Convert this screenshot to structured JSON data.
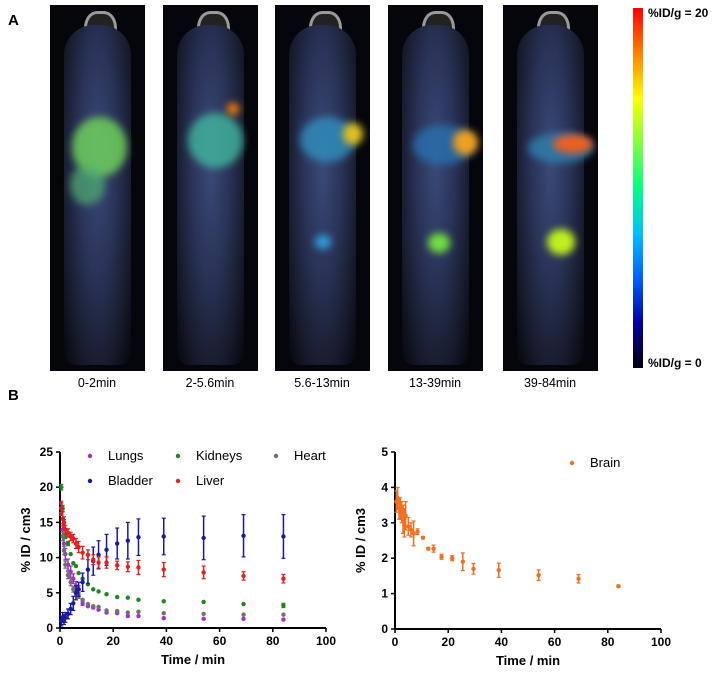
{
  "panel_a": {
    "letter": "A",
    "scan_labels": [
      "0-2min",
      "2-5.6min",
      "5.6-13min",
      "13-39min",
      "39-84min"
    ],
    "colorbar_max_label": "%ID/g = 20",
    "colorbar_min_label": "%ID/g = 0"
  },
  "panel_b": {
    "letter": "B"
  },
  "chart_data": [
    {
      "type": "scatter",
      "xlabel": "Time / min",
      "ylabel": "% ID / cm3",
      "xlim": [
        0,
        100
      ],
      "ylim": [
        0,
        25
      ],
      "xticks": [
        0,
        20,
        40,
        60,
        80,
        100
      ],
      "yticks": [
        0,
        5,
        10,
        15,
        20,
        25
      ],
      "grid": false,
      "legend_position": "top",
      "x": [
        0.5,
        1,
        1.5,
        2,
        3,
        4,
        5,
        6,
        7,
        8.5,
        10.5,
        12.5,
        14.5,
        17.5,
        21.5,
        25.5,
        29.5,
        39,
        54,
        69,
        84
      ],
      "series": [
        {
          "name": "Lungs",
          "color": "#a030d0",
          "values": [
            17,
            14,
            12,
            10.5,
            9,
            8,
            7,
            6,
            5.5,
            3.5,
            3.1,
            2.9,
            2.6,
            2.2,
            2.1,
            1.7,
            1.7,
            1.4,
            1.3,
            1.3,
            1.2
          ],
          "errors": [
            0.8,
            0.8,
            0.8,
            0.8,
            0.8,
            0.8,
            0.7,
            0.6,
            0.5,
            0.3,
            0,
            0,
            0,
            0,
            0,
            0,
            0,
            0,
            0,
            0,
            0
          ]
        },
        {
          "name": "Kidneys",
          "color": "#1a8a1a",
          "values": [
            20,
            17,
            15,
            13,
            12,
            10.5,
            9.2,
            8.8,
            7.8,
            7,
            6.2,
            5.5,
            5.2,
            4.8,
            4.4,
            4.3,
            4,
            3.8,
            3.7,
            3.4,
            3.2
          ],
          "errors": [
            0.4,
            0.4,
            0.4,
            0.3,
            0.3,
            0,
            0,
            0,
            0,
            0,
            0,
            0,
            0,
            0,
            0,
            0,
            0,
            0,
            0,
            0,
            0.3
          ]
        },
        {
          "name": "Heart",
          "color": "#707070",
          "values": [
            17,
            13,
            11,
            9,
            7.5,
            6.5,
            5.5,
            5,
            4.5,
            4,
            3.4,
            3.1,
            3,
            2.5,
            2.4,
            2.2,
            2.3,
            2.1,
            2,
            1.9,
            1.9
          ],
          "errors": [
            0.6,
            0.6,
            0.6,
            0.5,
            0.5,
            0.5,
            0.4,
            0.3,
            0.3,
            0,
            0,
            0,
            0,
            0,
            0,
            0,
            0,
            0,
            0,
            0,
            0
          ]
        },
        {
          "name": "Bladder",
          "color": "#1a1aa0",
          "values": [
            1,
            1.5,
            1.2,
            1.5,
            2,
            2.7,
            3.5,
            5,
            5.5,
            6.5,
            8.3,
            9.5,
            10.4,
            11.1,
            12,
            12.4,
            12.9,
            13,
            12.8,
            13.1,
            13
          ],
          "errors": [
            0.7,
            0.7,
            0.7,
            0.7,
            0.7,
            0.8,
            1,
            1,
            1,
            1.3,
            2,
            2,
            2,
            2.2,
            2.2,
            2.6,
            2.6,
            2.6,
            3.1,
            3,
            3.1
          ]
        },
        {
          "name": "Liver",
          "color": "#e02020",
          "values": [
            17,
            15.5,
            15,
            14,
            13.5,
            13,
            12.7,
            12,
            11.5,
            10.7,
            10.4,
            9.7,
            9.3,
            9.3,
            8.9,
            8.7,
            8.6,
            8.3,
            7.9,
            7.4,
            7.0
          ],
          "errors": [
            1,
            1,
            0.8,
            0.6,
            0.6,
            0.6,
            0.6,
            0.7,
            0.8,
            0.9,
            0.7,
            0.7,
            0.8,
            0.8,
            0.6,
            0.7,
            1,
            1,
            0.9,
            0.6,
            0.6
          ]
        }
      ]
    },
    {
      "type": "scatter",
      "xlabel": "Time / min",
      "ylabel": "% ID / cm3",
      "xlim": [
        0,
        100
      ],
      "ylim": [
        0,
        5
      ],
      "xticks": [
        0,
        20,
        40,
        60,
        80,
        100
      ],
      "yticks": [
        0,
        1,
        2,
        3,
        4,
        5
      ],
      "grid": false,
      "legend_position": "top-right",
      "x": [
        0.5,
        1,
        1.5,
        2,
        2.5,
        3,
        3.5,
        4,
        5,
        6,
        7,
        8.5,
        10.5,
        12.5,
        14.5,
        17.5,
        21.5,
        25.5,
        29.5,
        39,
        54,
        69,
        84
      ],
      "series": [
        {
          "name": "Brain",
          "color": "#f07020",
          "values": [
            3.6,
            3.7,
            3.4,
            3.4,
            3.3,
            3.1,
            3.0,
            3.2,
            2.9,
            2.8,
            2.7,
            2.75,
            2.58,
            2.27,
            2.27,
            2.04,
            2.0,
            1.9,
            1.7,
            1.66,
            1.52,
            1.42,
            1.21
          ],
          "errors": [
            0.3,
            0.3,
            0.3,
            0.3,
            0.3,
            0.4,
            0.4,
            0.4,
            0.25,
            0.2,
            0.35,
            0.08,
            0.03,
            0.03,
            0.1,
            0.07,
            0.07,
            0.25,
            0.15,
            0.2,
            0.15,
            0.12,
            0.03
          ]
        }
      ]
    }
  ]
}
